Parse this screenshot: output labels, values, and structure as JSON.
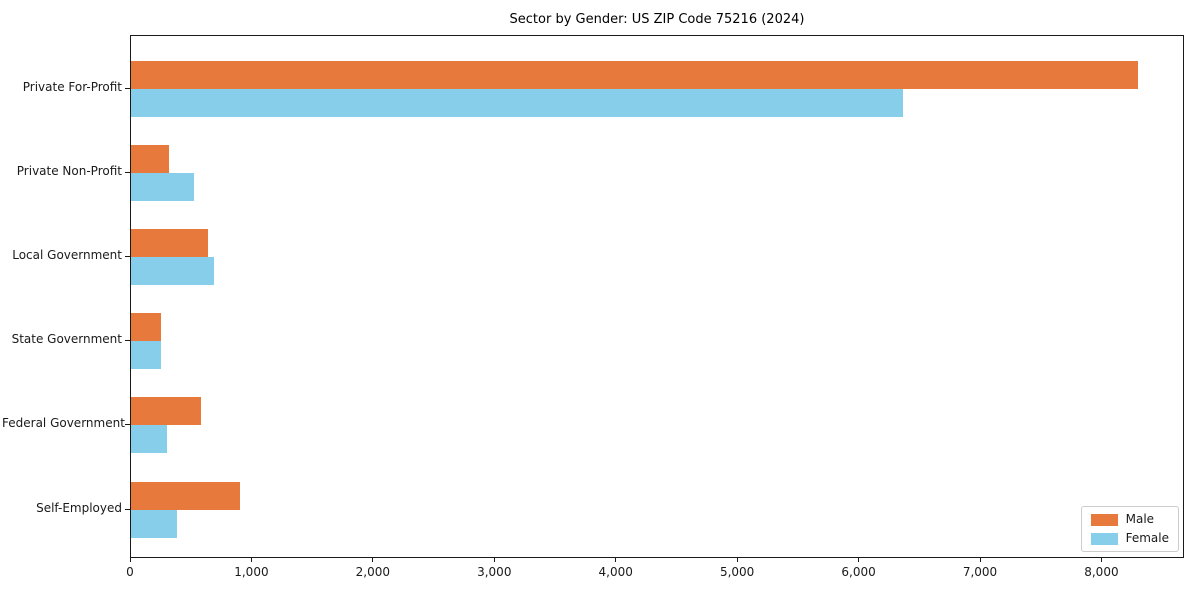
{
  "chart_data": {
    "type": "bar",
    "orientation": "horizontal",
    "title": "Sector by Gender: US ZIP Code 75216 (2024)",
    "categories": [
      "Private For-Profit",
      "Private Non-Profit",
      "Local Government",
      "State Government",
      "Federal Government",
      "Self-Employed"
    ],
    "series": [
      {
        "name": "Male",
        "color": "#E8793D",
        "values": [
          8290,
          310,
          630,
          250,
          580,
          900
        ]
      },
      {
        "name": "Female",
        "color": "#87CEEB",
        "values": [
          6360,
          520,
          680,
          245,
          295,
          380
        ]
      }
    ],
    "xlabel": "",
    "ylabel": "",
    "xlim": [
      0,
      8680
    ],
    "x_ticks": [
      0,
      1000,
      2000,
      3000,
      4000,
      5000,
      6000,
      7000,
      8000
    ],
    "x_tick_labels": [
      "0",
      "1,000",
      "2,000",
      "3,000",
      "4,000",
      "5,000",
      "6,000",
      "7,000",
      "8,000"
    ],
    "grid": false,
    "legend_position": "lower right",
    "axis_color": "#1a1a1a",
    "text_color": "#1a1a1a",
    "background_color": "#ffffff"
  }
}
